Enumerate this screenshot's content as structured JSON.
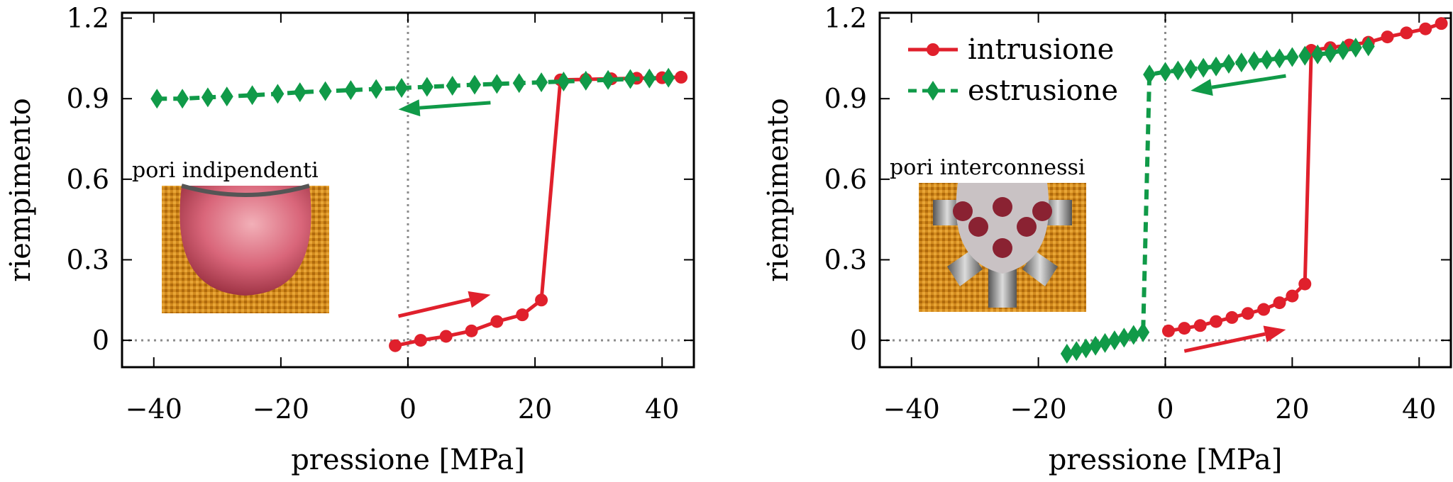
{
  "colors": {
    "intrusione": "#e0202c",
    "estrusione": "#109a48",
    "zero_lines": "#8c8c8c",
    "pore_solid": "#d28a1e",
    "pore_fill": "#d9667a"
  },
  "chart_data": [
    {
      "type": "line",
      "panel": "left",
      "xlabel": "pressione   [MPa]",
      "ylabel": "riempimento",
      "xlim": [
        -45,
        45
      ],
      "ylim": [
        -0.1,
        1.22
      ],
      "xticks": [
        -40,
        -20,
        0,
        20,
        40
      ],
      "xtick_labels": [
        "−40",
        "−20",
        "0",
        "20",
        "40"
      ],
      "yticks": [
        0,
        0.3,
        0.6,
        0.9,
        1.2
      ],
      "ytick_labels": [
        "0",
        "0.3",
        "0.6",
        "0.9",
        "1.2"
      ],
      "zero_lines": true,
      "legend": null,
      "inset_label": "pori indipendenti",
      "inset_icon": "spherical-pore-icon",
      "series": [
        {
          "key": "intrusione",
          "marker": "circle",
          "dash": false,
          "x": [
            -2,
            2,
            6,
            10,
            14,
            18,
            21,
            24,
            28,
            32,
            36,
            40,
            43
          ],
          "y": [
            -0.02,
            0.0,
            0.015,
            0.035,
            0.07,
            0.095,
            0.15,
            0.97,
            0.972,
            0.974,
            0.976,
            0.978,
            0.98
          ]
        },
        {
          "key": "estrusione",
          "marker": "diamond",
          "dash": true,
          "x": [
            -39.5,
            -35.5,
            -31.5,
            -28.5,
            -24.5,
            -20.5,
            -17,
            -13,
            -9,
            -5,
            -1,
            3,
            7,
            10.5,
            14,
            17.5,
            21,
            24.5,
            28,
            31.5,
            35,
            38,
            41
          ],
          "y": [
            0.9,
            0.9,
            0.905,
            0.908,
            0.913,
            0.918,
            0.924,
            0.928,
            0.932,
            0.936,
            0.94,
            0.944,
            0.948,
            0.952,
            0.955,
            0.958,
            0.961,
            0.964,
            0.967,
            0.97,
            0.973,
            0.975,
            0.978
          ]
        }
      ],
      "arrows": [
        {
          "series": "estrusione",
          "from": [
            13,
            0.885
          ],
          "to": [
            -1.5,
            0.86
          ]
        },
        {
          "series": "intrusione",
          "from": [
            -1.5,
            0.09
          ],
          "to": [
            13,
            0.17
          ]
        }
      ]
    },
    {
      "type": "line",
      "panel": "right",
      "xlabel": "pressione   [MPa]",
      "ylabel": "riempimento",
      "xlim": [
        -45,
        45
      ],
      "ylim": [
        -0.1,
        1.22
      ],
      "xticks": [
        -40,
        -20,
        0,
        20,
        40
      ],
      "xtick_labels": [
        "−40",
        "−20",
        "0",
        "20",
        "40"
      ],
      "yticks": [
        0,
        0.3,
        0.6,
        0.9,
        1.2
      ],
      "ytick_labels": [
        "0",
        "0.3",
        "0.6",
        "0.9",
        "1.2"
      ],
      "zero_lines": true,
      "legend": {
        "entries": [
          "intrusione",
          "estrusione"
        ],
        "position": "top-left"
      },
      "inset_label": "pori interconnessi",
      "inset_icon": "interconnected-pore-icon",
      "series": [
        {
          "key": "intrusione",
          "name": "intrusione",
          "marker": "circle",
          "dash": false,
          "x": [
            0.5,
            3,
            5.5,
            8,
            10.5,
            13,
            15.5,
            18,
            20,
            22,
            23,
            26,
            29,
            32,
            35,
            38,
            41,
            43.5
          ],
          "y": [
            0.035,
            0.045,
            0.055,
            0.07,
            0.085,
            0.1,
            0.115,
            0.14,
            0.165,
            0.21,
            1.08,
            1.09,
            1.1,
            1.11,
            1.13,
            1.145,
            1.16,
            1.18
          ]
        },
        {
          "key": "estrusione",
          "name": "estrusione",
          "marker": "diamond",
          "dash": true,
          "x": [
            -15.5,
            -14,
            -12.5,
            -11,
            -9.5,
            -8,
            -6.5,
            -5,
            -3.5,
            -2.5,
            0,
            2,
            4,
            6,
            8,
            10,
            12,
            14,
            16,
            18,
            20,
            22,
            24,
            26,
            28,
            30,
            32
          ],
          "y": [
            -0.05,
            -0.04,
            -0.03,
            -0.02,
            -0.01,
            0.0,
            0.01,
            0.02,
            0.03,
            0.99,
            1.0,
            1.005,
            1.01,
            1.015,
            1.02,
            1.03,
            1.035,
            1.04,
            1.045,
            1.05,
            1.055,
            1.06,
            1.065,
            1.07,
            1.08,
            1.09,
            1.095
          ]
        }
      ],
      "arrows": [
        {
          "series": "estrusione",
          "from": [
            19,
            0.985
          ],
          "to": [
            4,
            0.93
          ]
        },
        {
          "series": "intrusione",
          "from": [
            3,
            -0.04
          ],
          "to": [
            19,
            0.04
          ]
        }
      ]
    }
  ]
}
